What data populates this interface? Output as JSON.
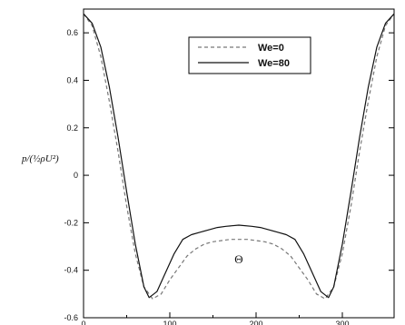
{
  "chart_data": {
    "type": "line",
    "xlabel": "Θ",
    "ylabel": "p/(½ρU²)",
    "xlim": [
      0,
      360
    ],
    "ylim": [
      -0.6,
      0.7
    ],
    "xticks": [
      0,
      100,
      200,
      300
    ],
    "xtick_labels": [
      "0",
      "100",
      "200",
      "300"
    ],
    "yticks": [
      0.6,
      0.4,
      0.2,
      0,
      -0.2,
      -0.4,
      -0.6
    ],
    "ytick_labels": [
      "0.6",
      "0.4",
      "0.2",
      "0",
      "-0.2",
      "-0.4",
      "-0.6"
    ],
    "grid": false,
    "legend_position": "top-center",
    "series": [
      {
        "name": "We=0",
        "style": "dashed",
        "color": "#777777",
        "x": [
          0,
          10,
          20,
          30,
          40,
          50,
          60,
          70,
          80,
          90,
          100,
          110,
          120,
          130,
          140,
          150,
          160,
          170,
          180,
          190,
          200,
          210,
          220,
          230,
          240,
          250,
          260,
          270,
          280,
          290,
          300,
          310,
          320,
          330,
          340,
          350,
          360
        ],
        "y": [
          0.68,
          0.63,
          0.5,
          0.31,
          0.1,
          -0.13,
          -0.33,
          -0.47,
          -0.52,
          -0.5,
          -0.44,
          -0.39,
          -0.34,
          -0.31,
          -0.29,
          -0.28,
          -0.275,
          -0.27,
          -0.27,
          -0.27,
          -0.275,
          -0.28,
          -0.29,
          -0.31,
          -0.34,
          -0.39,
          -0.44,
          -0.5,
          -0.52,
          -0.47,
          -0.33,
          -0.13,
          0.1,
          0.31,
          0.5,
          0.63,
          0.68
        ]
      },
      {
        "name": "We=80",
        "style": "solid",
        "color": "#111111",
        "x": [
          0,
          10,
          20,
          30,
          40,
          50,
          60,
          70,
          76,
          85,
          95,
          105,
          115,
          125,
          135,
          145,
          155,
          165,
          180,
          195,
          205,
          215,
          225,
          235,
          245,
          255,
          265,
          275,
          284,
          290,
          300,
          310,
          320,
          330,
          340,
          350,
          360
        ],
        "y": [
          0.68,
          0.64,
          0.54,
          0.37,
          0.16,
          -0.07,
          -0.29,
          -0.47,
          -0.515,
          -0.49,
          -0.41,
          -0.33,
          -0.27,
          -0.25,
          -0.24,
          -0.23,
          -0.22,
          -0.215,
          -0.21,
          -0.215,
          -0.22,
          -0.23,
          -0.24,
          -0.25,
          -0.27,
          -0.33,
          -0.41,
          -0.49,
          -0.515,
          -0.47,
          -0.29,
          -0.07,
          0.16,
          0.37,
          0.54,
          0.64,
          0.68
        ]
      }
    ]
  }
}
